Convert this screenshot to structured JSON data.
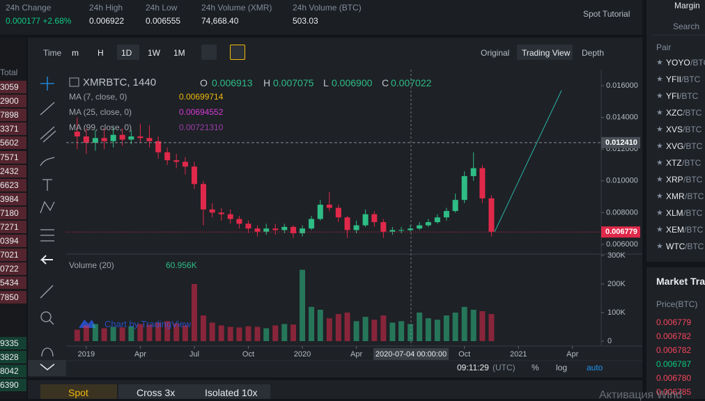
{
  "stats": [
    {
      "label": "24h Change",
      "value": "0.000177 +2.68%",
      "color": "#0ecb81"
    },
    {
      "label": "24h High",
      "value": "0.006922"
    },
    {
      "label": "24h Low",
      "value": "0.006555"
    },
    {
      "label": "24h Volume (XMR)",
      "value": "74,668.40"
    },
    {
      "label": "24h Volume (BTC)",
      "value": "503.03"
    }
  ],
  "spot_tutorial": "Spot Tutorial",
  "toolbar": {
    "time": "Time",
    "intervals": [
      "m",
      "H",
      "1D",
      "1W",
      "1M"
    ],
    "views": [
      "Original",
      "Trading View",
      "Depth"
    ]
  },
  "legend": {
    "symbol": "XMRBTC, 1440",
    "ohlc": [
      {
        "letter": "O",
        "value": "0.006913"
      },
      {
        "letter": "H",
        "value": "0.007075"
      },
      {
        "letter": "L",
        "value": "0.006900"
      },
      {
        "letter": "C",
        "value": "0.007022"
      }
    ],
    "ma": [
      {
        "label": "MA (7, close, 0)",
        "value": "0.00699714",
        "color": "#f0b90b"
      },
      {
        "label": "MA (25, close, 0)",
        "value": "0.00694552",
        "color": "#d63ad6"
      },
      {
        "label": "MA (99, close, 0)",
        "value": "0.00721310",
        "color": "#9b3ea8"
      }
    ],
    "volume": {
      "label": "Volume (20)",
      "value": "60.956K"
    }
  },
  "watermark": "Chart by TradingView",
  "crosshair_time": "2020-07-04 00:00:00",
  "bottom_bar": {
    "clock": "09:11:29",
    "timezone": "(UTC)",
    "buttons": [
      "%",
      "log",
      "auto"
    ]
  },
  "chart": {
    "type": "candlestick",
    "up_color": "#2ebd85",
    "down_color": "#e0294a",
    "x": [
      2018.958,
      2019.0,
      2019.042,
      2019.083,
      2019.125,
      2019.167,
      2019.208,
      2019.25,
      2019.292,
      2019.333,
      2019.375,
      2019.417,
      2019.458,
      2019.5,
      2019.542,
      2019.583,
      2019.625,
      2019.667,
      2019.708,
      2019.75,
      2019.792,
      2019.833,
      2019.875,
      2019.917,
      2019.958,
      2020.0,
      2020.042,
      2020.083,
      2020.125,
      2020.167,
      2020.208,
      2020.25,
      2020.292,
      2020.333,
      2020.375,
      2020.417,
      2020.458,
      2020.5,
      2020.542,
      2020.583,
      2020.625,
      2020.667,
      2020.708,
      2020.75,
      2020.792,
      2020.833,
      2020.875
    ],
    "open": [
      0.0131,
      0.0128,
      0.0124,
      0.0127,
      0.0125,
      0.0129,
      0.0126,
      0.0128,
      0.0127,
      0.0125,
      0.0118,
      0.0113,
      0.0112,
      0.0109,
      0.0098,
      0.0082,
      0.008,
      0.0079,
      0.0076,
      0.0073,
      0.007,
      0.0068,
      0.007,
      0.0069,
      0.0071,
      0.0067,
      0.007,
      0.0076,
      0.0085,
      0.0083,
      0.0077,
      0.0069,
      0.0072,
      0.0079,
      0.0074,
      0.0068,
      0.0069,
      0.0069,
      0.007,
      0.0072,
      0.0074,
      0.0077,
      0.0081,
      0.0088,
      0.0103,
      0.0108,
      0.0089
    ],
    "high": [
      0.014,
      0.0133,
      0.0132,
      0.0133,
      0.0134,
      0.0133,
      0.0132,
      0.0136,
      0.0135,
      0.0128,
      0.0121,
      0.0117,
      0.0115,
      0.0112,
      0.01,
      0.0086,
      0.0083,
      0.0082,
      0.0078,
      0.0075,
      0.0072,
      0.0073,
      0.0073,
      0.0073,
      0.0072,
      0.0072,
      0.0078,
      0.0088,
      0.0093,
      0.0085,
      0.0078,
      0.0075,
      0.0082,
      0.0081,
      0.0076,
      0.0071,
      0.0071,
      0.0072,
      0.0074,
      0.0076,
      0.0079,
      0.0083,
      0.0092,
      0.0106,
      0.0118,
      0.011,
      0.0091
    ],
    "low": [
      0.012,
      0.0117,
      0.0119,
      0.012,
      0.0121,
      0.0122,
      0.0123,
      0.0124,
      0.0121,
      0.0114,
      0.011,
      0.0108,
      0.0104,
      0.0095,
      0.0072,
      0.0077,
      0.0075,
      0.0073,
      0.007,
      0.0067,
      0.0065,
      0.0066,
      0.0066,
      0.0067,
      0.0064,
      0.0065,
      0.0069,
      0.0075,
      0.0081,
      0.0074,
      0.0064,
      0.0067,
      0.0071,
      0.0071,
      0.0064,
      0.0066,
      0.0067,
      0.0068,
      0.0069,
      0.0071,
      0.0073,
      0.0075,
      0.008,
      0.0086,
      0.01,
      0.0086,
      0.0065
    ],
    "close": [
      0.0128,
      0.0124,
      0.0127,
      0.0125,
      0.0129,
      0.0126,
      0.0128,
      0.0127,
      0.0125,
      0.0118,
      0.0113,
      0.0112,
      0.0109,
      0.0098,
      0.0082,
      0.008,
      0.0079,
      0.0076,
      0.0073,
      0.007,
      0.0068,
      0.007,
      0.0069,
      0.0071,
      0.0067,
      0.007,
      0.0076,
      0.0085,
      0.0083,
      0.0077,
      0.0069,
      0.0072,
      0.0079,
      0.0074,
      0.0068,
      0.0069,
      0.0069,
      0.007,
      0.0072,
      0.0074,
      0.0077,
      0.0081,
      0.0088,
      0.0103,
      0.0108,
      0.0089,
      0.0068
    ],
    "volume": [
      40000,
      55000,
      60000,
      45000,
      50000,
      48000,
      52000,
      60000,
      58000,
      65000,
      70000,
      62000,
      55000,
      200000,
      90000,
      65000,
      55000,
      50000,
      48000,
      52000,
      50000,
      45000,
      55000,
      60000,
      58000,
      250000,
      120000,
      110000,
      80000,
      95000,
      100000,
      70000,
      85000,
      75000,
      90000,
      65000,
      70000,
      60000,
      100000,
      80000,
      75000,
      90000,
      100000,
      120000,
      110000,
      105000,
      95000
    ],
    "xlim": [
      2018.907,
      2021.383
    ],
    "xticks": [
      2019,
      {
        "value": 2019.25,
        "label": "Apr"
      },
      {
        "value": 2019.5,
        "label": "Jul"
      },
      {
        "value": 2019.75,
        "label": "Oct"
      },
      2020,
      {
        "value": 2020.25,
        "label": "Apr"
      },
      {
        "value": 2020.75,
        "label": "Oct"
      },
      2021,
      {
        "value": 2021.25,
        "label": "Apr"
      }
    ],
    "ylim": [
      0.005474,
      0.017009
    ],
    "yticks": [
      {
        "value": 0.006,
        "label": "0.006000"
      },
      {
        "value": 0.008,
        "label": "0.008000"
      },
      {
        "value": 0.01,
        "label": "0.010000"
      },
      {
        "value": 0.012,
        "label": "0.012000"
      },
      {
        "value": 0.014,
        "label": "0.014000"
      },
      {
        "value": 0.016,
        "label": "0.016000"
      }
    ],
    "volume_ylim": [
      0,
      300000
    ],
    "volume_yticks": [
      0,
      {
        "value": 100000,
        "label": "100K"
      },
      {
        "value": 200000,
        "label": "200K"
      },
      {
        "value": 300000,
        "label": "300K"
      }
    ],
    "crosshair_price": {
      "value": 0.01241,
      "label": "0.012410"
    },
    "last_price": {
      "value": 0.006779,
      "label": "0.006779"
    }
  },
  "order_book": {
    "header": "Total",
    "asks": [
      "3059",
      "2900",
      "7898",
      "3371",
      "5602",
      "7571",
      "2432",
      "6623",
      "3984",
      "7180",
      "7271",
      "0394",
      "7021",
      "0722",
      "5434",
      "7850"
    ],
    "bids": [
      "9335",
      "3828",
      "8042",
      "6390"
    ]
  },
  "margin_tabs": [
    "Spot",
    "Cross 3x",
    "Isolated 10x"
  ],
  "sidebar": {
    "margin": "Margin",
    "search": "Search",
    "pair_header": "Pair",
    "pairs": [
      {
        "base": "YOYO",
        "quote": "/BTC"
      },
      {
        "base": "YFII",
        "quote": "/BTC"
      },
      {
        "base": "YFI",
        "quote": "/BTC"
      },
      {
        "base": "XZC",
        "quote": "/BTC"
      },
      {
        "base": "XVS",
        "quote": "/BTC"
      },
      {
        "base": "XVG",
        "quote": "/BTC"
      },
      {
        "base": "XTZ",
        "quote": "/BTC"
      },
      {
        "base": "XRP",
        "quote": "/BTC"
      },
      {
        "base": "XMR",
        "quote": "/BTC"
      },
      {
        "base": "XLM",
        "quote": "/BTC"
      },
      {
        "base": "XEM",
        "quote": "/BTC"
      },
      {
        "base": "WTC",
        "quote": "/BTC"
      }
    ]
  },
  "market_trades": {
    "title": "Market Tra",
    "price_header": "Price(BTC)",
    "trades": [
      {
        "price": "0.006779",
        "color": "#f6465d"
      },
      {
        "price": "0.006782",
        "color": "#f6465d"
      },
      {
        "price": "0.006782",
        "color": "#f6465d"
      },
      {
        "price": "0.006787",
        "color": "#0ecb81"
      },
      {
        "price": "0.006780",
        "color": "#f6465d"
      },
      {
        "price": "0.006785",
        "color": "#f6465d"
      }
    ]
  },
  "os_watermark": "Активация Wind"
}
